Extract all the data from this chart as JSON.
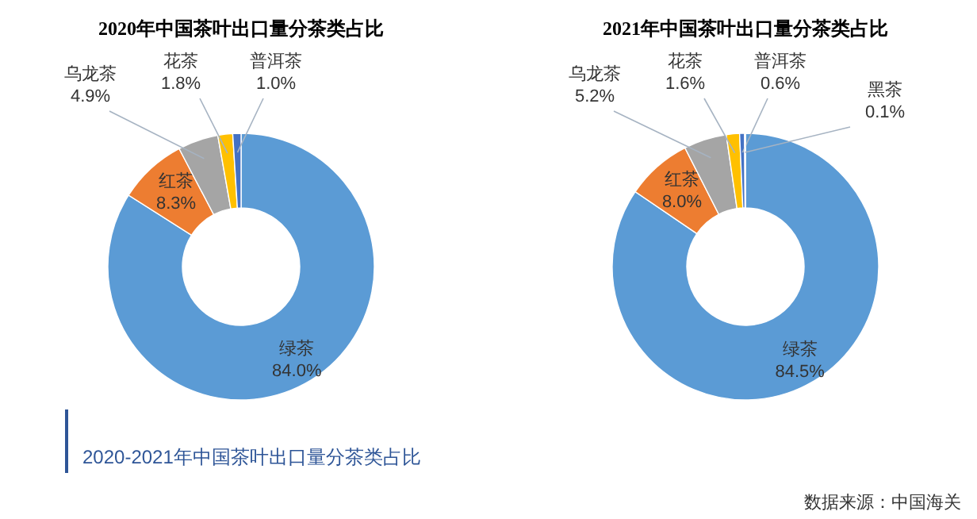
{
  "chart_data": [
    {
      "type": "donut",
      "title": "2020年中国茶叶出口量分茶类占比",
      "categories": [
        "绿茶",
        "红茶",
        "乌龙茶",
        "花茶",
        "普洱茶"
      ],
      "values": [
        84.0,
        8.3,
        4.9,
        1.8,
        1.0
      ],
      "value_labels": [
        "84.0%",
        "8.3%",
        "4.9%",
        "1.8%",
        "1.0%"
      ],
      "colors": [
        "#5b9bd5",
        "#ed7d31",
        "#a5a5a5",
        "#ffc000",
        "#4472c4"
      ]
    },
    {
      "type": "donut",
      "title": "2021年中国茶叶出口量分茶类占比",
      "categories": [
        "绿茶",
        "红茶",
        "乌龙茶",
        "花茶",
        "普洱茶",
        "黑茶"
      ],
      "values": [
        84.5,
        8.0,
        5.2,
        1.6,
        0.6,
        0.1
      ],
      "value_labels": [
        "84.5%",
        "8.0%",
        "5.2%",
        "1.6%",
        "0.6%",
        "0.1%"
      ],
      "colors": [
        "#5b9bd5",
        "#ed7d31",
        "#a5a5a5",
        "#ffc000",
        "#4472c4",
        "#70ad47"
      ],
      "annotations": [
        "2020-2021年中国茶叶出口量分茶类占比",
        "数据来源：中国海关"
      ]
    }
  ]
}
